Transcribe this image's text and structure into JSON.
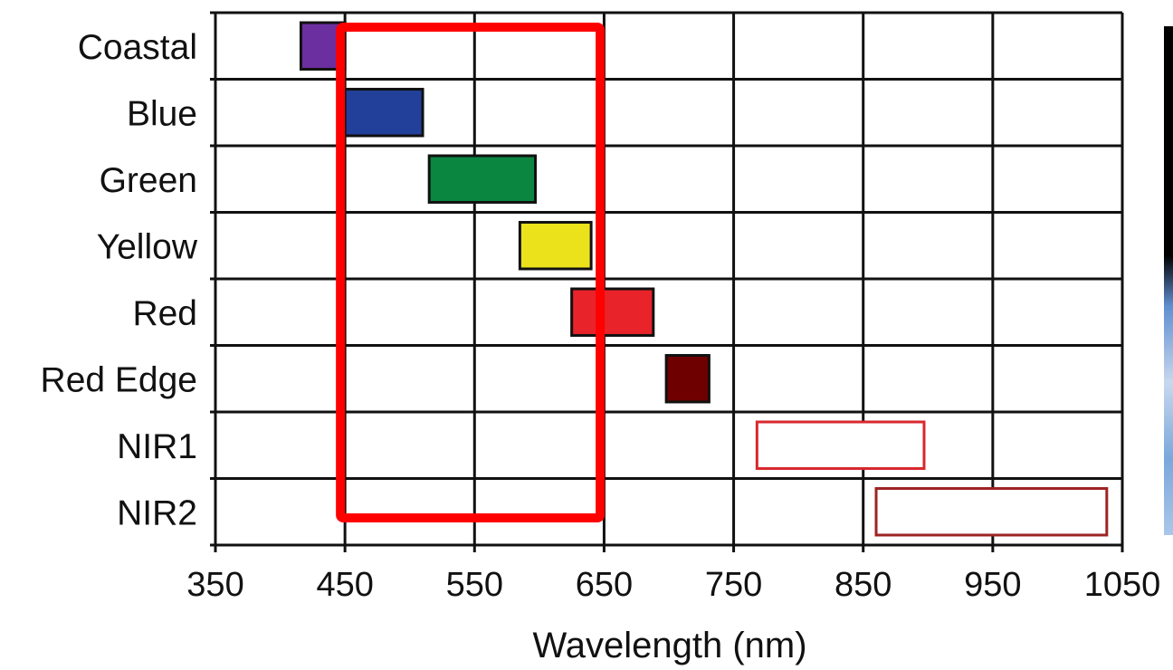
{
  "chart_data": {
    "type": "bar",
    "orientation": "horizontal-range",
    "title": "",
    "xlabel": "Wavelength (nm)",
    "ylabel": "",
    "xlim": [
      350,
      1050
    ],
    "xticks": [
      "350",
      "450",
      "550",
      "650",
      "750",
      "850",
      "950",
      "1050"
    ],
    "grid": true,
    "categories": [
      "Coastal",
      "Blue",
      "Green",
      "Yellow",
      "Red",
      "Red Edge",
      "NIR1",
      "NIR2"
    ],
    "series": [
      {
        "values": [
          {
            "band": "Coastal",
            "start": 416,
            "end": 450,
            "color": "#6b2fa0",
            "filled": true
          },
          {
            "band": "Blue",
            "start": 450,
            "end": 510,
            "color": "#22409a",
            "filled": true
          },
          {
            "band": "Green",
            "start": 515,
            "end": 597,
            "color": "#0a8640",
            "filled": true
          },
          {
            "band": "Yellow",
            "start": 585,
            "end": 640,
            "color": "#ece21c",
            "filled": true
          },
          {
            "band": "Red",
            "start": 625,
            "end": 688,
            "color": "#e8232a",
            "filled": true
          },
          {
            "band": "Red Edge",
            "start": 698,
            "end": 731,
            "color": "#6f0000",
            "filled": true
          },
          {
            "band": "NIR1",
            "start": 768,
            "end": 897,
            "color": "#d8282e",
            "filled": false
          },
          {
            "band": "NIR2",
            "start": 860,
            "end": 1038,
            "color": "#9d2423",
            "filled": false
          }
        ]
      }
    ],
    "annotations": [
      {
        "type": "highlight-box",
        "x_start": 450,
        "x_end": 640,
        "band_start": "Coastal",
        "band_end": "NIR2",
        "color": "#ff0000"
      }
    ]
  }
}
